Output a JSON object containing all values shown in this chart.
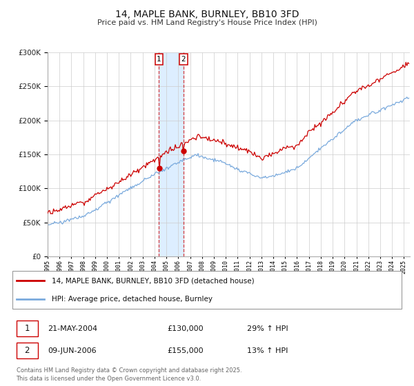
{
  "title": "14, MAPLE BANK, BURNLEY, BB10 3FD",
  "subtitle": "Price paid vs. HM Land Registry's House Price Index (HPI)",
  "legend_line1": "14, MAPLE BANK, BURNLEY, BB10 3FD (detached house)",
  "legend_line2": "HPI: Average price, detached house, Burnley",
  "transaction1_date": "21-MAY-2004",
  "transaction1_price": "£130,000",
  "transaction1_hpi": "29% ↑ HPI",
  "transaction2_date": "09-JUN-2006",
  "transaction2_price": "£155,000",
  "transaction2_hpi": "13% ↑ HPI",
  "footer": "Contains HM Land Registry data © Crown copyright and database right 2025.\nThis data is licensed under the Open Government Licence v3.0.",
  "red_color": "#cc0000",
  "blue_color": "#7aaadd",
  "highlight_color": "#ddeeff",
  "background_color": "#ffffff",
  "grid_color": "#cccccc",
  "ylim": [
    0,
    300000
  ],
  "date_t1_year": 2004.38,
  "date_t2_year": 2006.44,
  "price_t1": 130000,
  "price_t2": 155000
}
